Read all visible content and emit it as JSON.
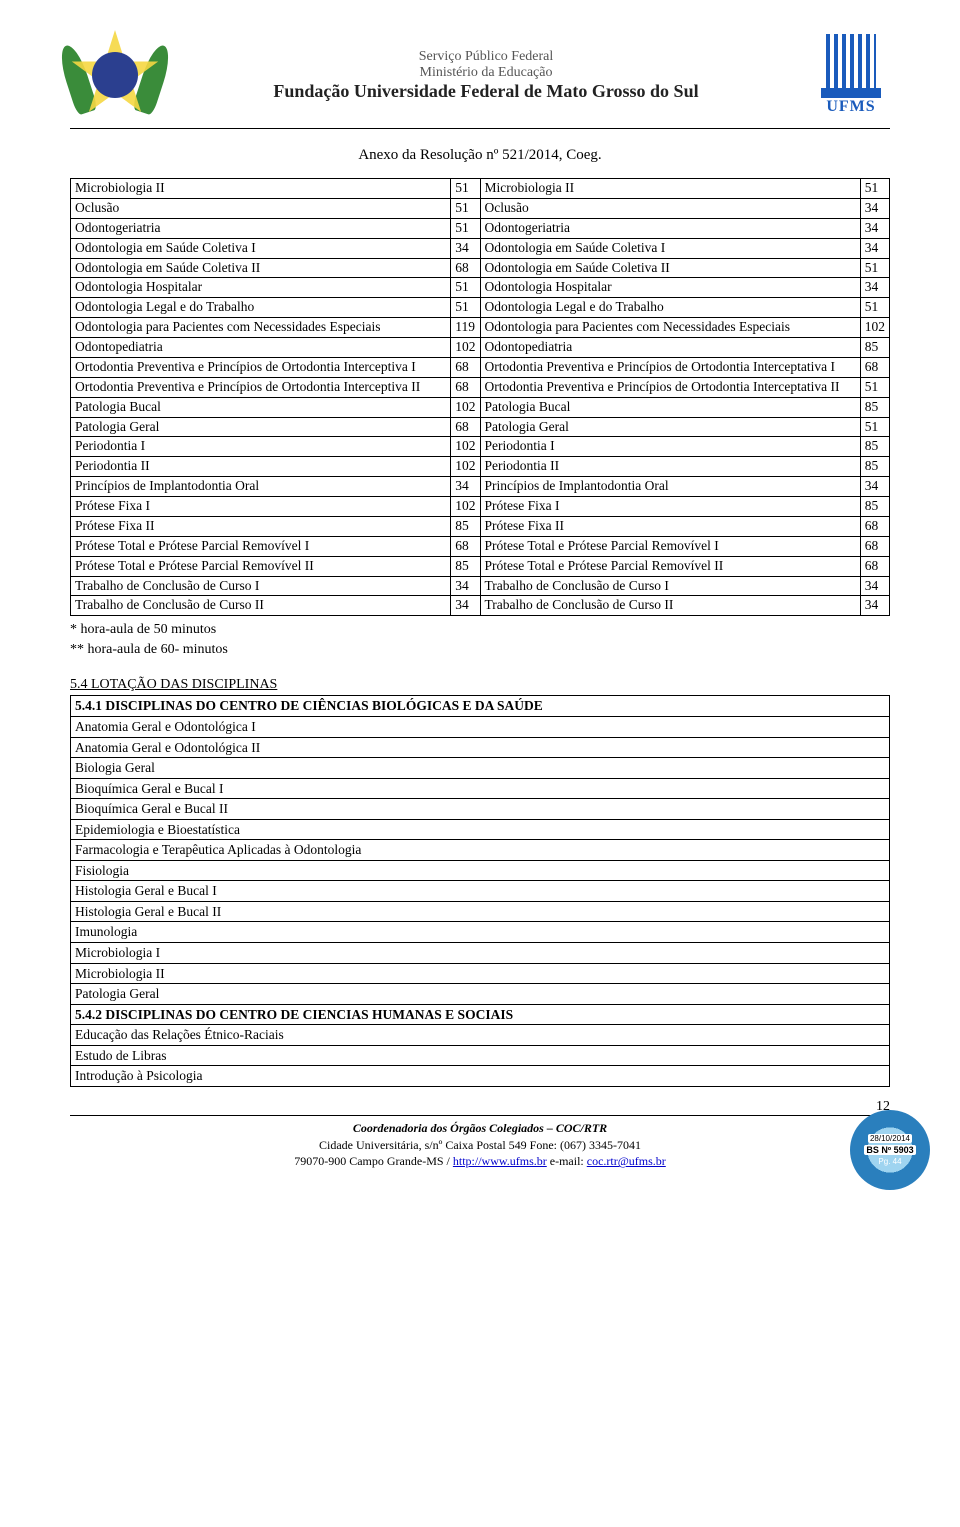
{
  "header": {
    "line1": "Serviço Público Federal",
    "line2": "Ministério da Educação",
    "line3": "Fundação Universidade Federal de Mato Grosso do Sul",
    "ufms": "UFMS"
  },
  "anexo": "Anexo da Resolução nº 521/2014, Coeg.",
  "equiv_rows": [
    {
      "l": "Microbiologia II",
      "ln": "51",
      "r": "Microbiologia II",
      "rn": "51"
    },
    {
      "l": "Oclusão",
      "ln": "51",
      "r": "Oclusão",
      "rn": "34"
    },
    {
      "l": "Odontogeriatria",
      "ln": "51",
      "r": "Odontogeriatria",
      "rn": "34"
    },
    {
      "l": "Odontologia em Saúde Coletiva I",
      "ln": "34",
      "r": "Odontologia em Saúde Coletiva I",
      "rn": "34"
    },
    {
      "l": "Odontologia em Saúde Coletiva II",
      "ln": "68",
      "r": "Odontologia em Saúde Coletiva II",
      "rn": "51"
    },
    {
      "l": "Odontologia Hospitalar",
      "ln": "51",
      "r": "Odontologia Hospitalar",
      "rn": "34"
    },
    {
      "l": "Odontologia Legal e do Trabalho",
      "ln": "51",
      "r": "Odontologia Legal e do Trabalho",
      "rn": "51"
    },
    {
      "l": "Odontologia para Pacientes com Necessidades Especiais",
      "ln": "119",
      "r": "Odontologia para Pacientes com Necessidades Especiais",
      "rn": "102"
    },
    {
      "l": "Odontopediatria",
      "ln": "102",
      "r": "Odontopediatria",
      "rn": "85"
    },
    {
      "l": "Ortodontia Preventiva e Princípios de Ortodontia Interceptiva I",
      "ln": "68",
      "r": "Ortodontia Preventiva e Princípios de Ortodontia Interceptativa I",
      "rn": "68"
    },
    {
      "l": "Ortodontia Preventiva e Princípios de Ortodontia Interceptiva II",
      "ln": "68",
      "r": "Ortodontia Preventiva e Princípios de Ortodontia Interceptativa II",
      "rn": "51"
    },
    {
      "l": "Patologia Bucal",
      "ln": "102",
      "r": "Patologia Bucal",
      "rn": "85"
    },
    {
      "l": "Patologia Geral",
      "ln": "68",
      "r": "Patologia Geral",
      "rn": "51"
    },
    {
      "l": "Periodontia I",
      "ln": "102",
      "r": "Periodontia I",
      "rn": "85"
    },
    {
      "l": "Periodontia II",
      "ln": "102",
      "r": "Periodontia II",
      "rn": "85"
    },
    {
      "l": "Princípios de Implantodontia Oral",
      "ln": "34",
      "r": "Princípios de Implantodontia Oral",
      "rn": "34"
    },
    {
      "l": "Prótese Fixa I",
      "ln": "102",
      "r": "Prótese Fixa I",
      "rn": "85"
    },
    {
      "l": "Prótese Fixa II",
      "ln": "85",
      "r": "Prótese Fixa II",
      "rn": "68"
    },
    {
      "l": "Prótese Total e Prótese Parcial Removível I",
      "ln": "68",
      "r": "Prótese Total e Prótese Parcial Removível I",
      "rn": "68"
    },
    {
      "l": "Prótese Total e Prótese Parcial Removível II",
      "ln": "85",
      "r": "Prótese Total e Prótese Parcial Removível II",
      "rn": "68"
    },
    {
      "l": "Trabalho de Conclusão de Curso I",
      "ln": "34",
      "r": "Trabalho de Conclusão de Curso I",
      "rn": "34"
    },
    {
      "l": "Trabalho de Conclusão de Curso II",
      "ln": "34",
      "r": "Trabalho de Conclusão de Curso II",
      "rn": "34"
    }
  ],
  "notes": {
    "n1": "* hora-aula de 50 minutos",
    "n2": "** hora-aula de 60- minutos"
  },
  "section54": "5.4 LOTAÇÃO DAS DISCIPLINAS",
  "lot_rows": [
    {
      "t": "5.4.1 DISCIPLINAS DO CENTRO DE CIÊNCIAS BIOLÓGICAS E DA SAÚDE",
      "b": true
    },
    {
      "t": "Anatomia Geral e Odontológica I",
      "b": false
    },
    {
      "t": "Anatomia Geral e Odontológica II",
      "b": false
    },
    {
      "t": "Biologia Geral",
      "b": false
    },
    {
      "t": "Bioquímica Geral e Bucal I",
      "b": false
    },
    {
      "t": "Bioquímica Geral e Bucal II",
      "b": false
    },
    {
      "t": "Epidemiologia e Bioestatística",
      "b": false
    },
    {
      "t": "Farmacologia e Terapêutica Aplicadas à Odontologia",
      "b": false
    },
    {
      "t": "Fisiologia",
      "b": false
    },
    {
      "t": "Histologia Geral e Bucal I",
      "b": false
    },
    {
      "t": "Histologia Geral e Bucal II",
      "b": false
    },
    {
      "t": "Imunologia",
      "b": false
    },
    {
      "t": "Microbiologia I",
      "b": false
    },
    {
      "t": "Microbiologia II",
      "b": false
    },
    {
      "t": "Patologia Geral",
      "b": false
    },
    {
      "t": "5.4.2 DISCIPLINAS DO CENTRO DE CIENCIAS HUMANAS E SOCIAIS",
      "b": true
    },
    {
      "t": "Educação das Relações Étnico-Raciais",
      "b": false
    },
    {
      "t": "Estudo de Libras",
      "b": false
    },
    {
      "t": "Introdução à Psicologia",
      "b": false
    }
  ],
  "page_number": "12",
  "footer": {
    "line1": "Coordenadoria dos Órgãos Colegiados – COC/RTR",
    "line2": "Cidade Universitária, s/nº Caixa Postal 549 Fone: (067) 3345-7041",
    "line3_pre": "79070-900 Campo Grande-MS / ",
    "link1": "http://www.ufms.br",
    "line3_mid": " e-mail: ",
    "link2": "coc.rtr@ufms.br"
  },
  "seal": {
    "date": "28/10/2014",
    "bs": "BS Nº 5903",
    "pg": "Pg. 44"
  },
  "colors": {
    "text": "#000000",
    "border": "#000000",
    "link": "#0000cc",
    "seal_outer": "#2a7fbd",
    "seal_inner": "#9fd4f0",
    "ufms_blue": "#1a5bbc"
  }
}
